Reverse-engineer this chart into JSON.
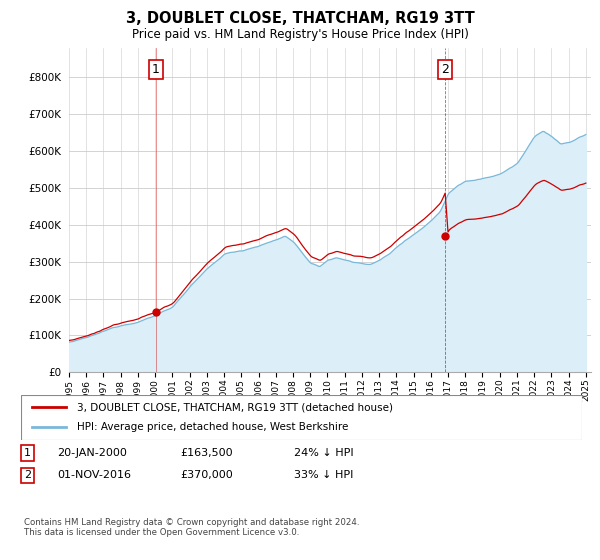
{
  "title": "3, DOUBLET CLOSE, THATCHAM, RG19 3TT",
  "subtitle": "Price paid vs. HM Land Registry's House Price Index (HPI)",
  "hpi_label": "HPI: Average price, detached house, West Berkshire",
  "property_label": "3, DOUBLET CLOSE, THATCHAM, RG19 3TT (detached house)",
  "hpi_color": "#7ab8d9",
  "hpi_fill_color": "#dceef7",
  "property_color": "#cc0000",
  "dashed_color": "#cc0000",
  "sale1_year": 2000.055,
  "sale1_price": 163500,
  "sale2_year": 2016.836,
  "sale2_price": 370000,
  "annotation1_label": "1",
  "annotation2_label": "2",
  "note1_date": "20-JAN-2000",
  "note1_price": "£163,500",
  "note1_pct": "24% ↓ HPI",
  "note2_date": "01-NOV-2016",
  "note2_price": "£370,000",
  "note2_pct": "33% ↓ HPI",
  "footer": "Contains HM Land Registry data © Crown copyright and database right 2024.\nThis data is licensed under the Open Government Licence v3.0.",
  "ylim": [
    0,
    880000
  ],
  "yticks": [
    0,
    100000,
    200000,
    300000,
    400000,
    500000,
    600000,
    700000,
    800000
  ],
  "background_color": "#ffffff",
  "grid_color": "#cccccc"
}
